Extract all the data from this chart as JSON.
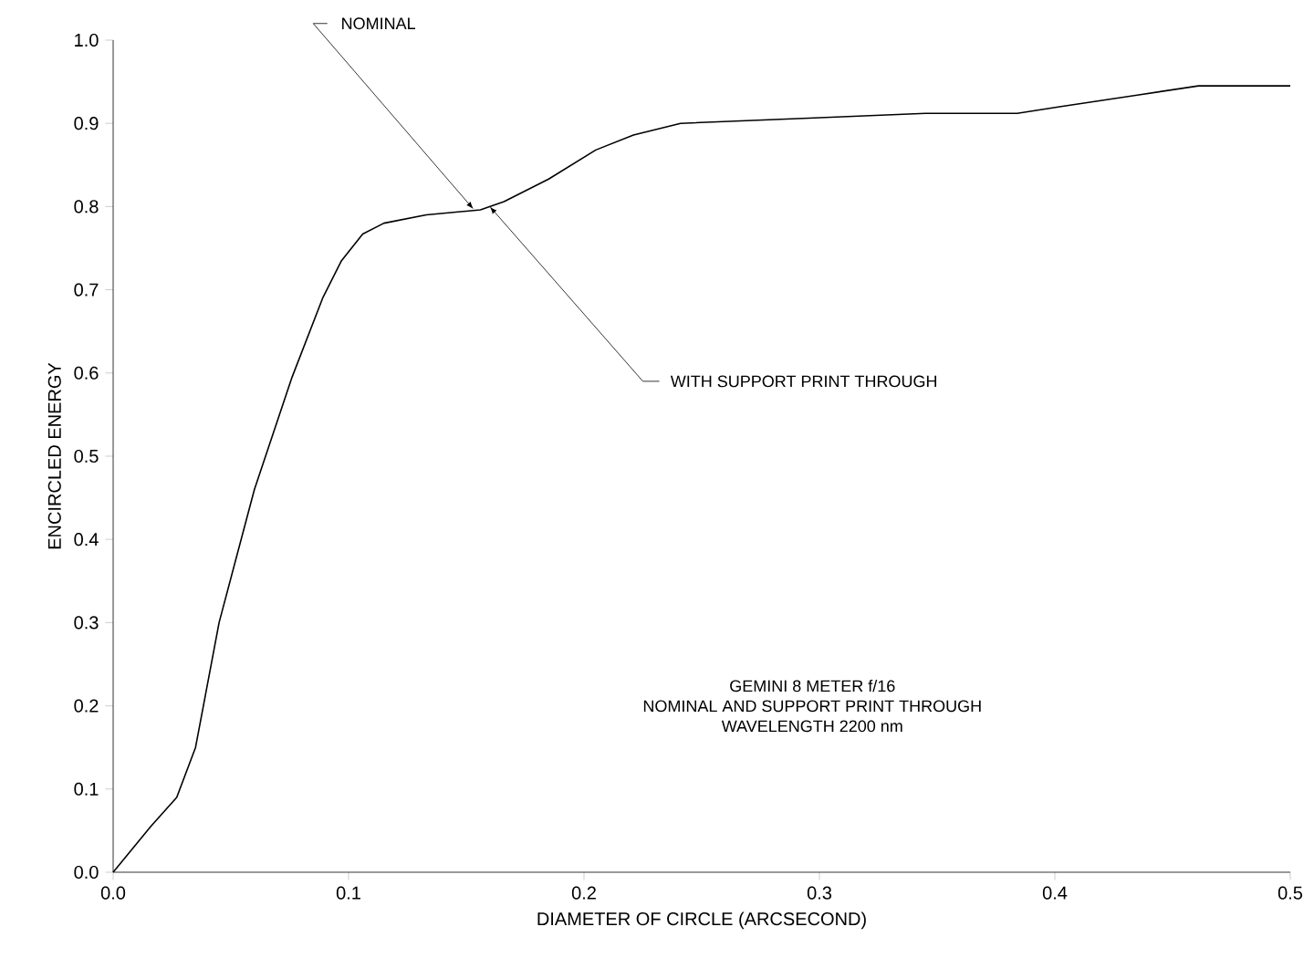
{
  "chart_data": {
    "type": "line",
    "xlabel": "DIAMETER OF CIRCLE (ARCSECOND)",
    "ylabel": "ENCIRCLED ENERGY",
    "x": [
      0,
      0.016,
      0.027,
      0.035,
      0.045,
      0.06,
      0.076,
      0.089,
      0.097,
      0.106,
      0.115,
      0.133,
      0.156,
      0.166,
      0.185,
      0.205,
      0.221,
      0.231,
      0.241,
      0.293,
      0.345,
      0.384,
      0.402,
      0.435,
      0.461,
      0.5
    ],
    "series": [
      {
        "color": "#000000",
        "values": [
          0,
          0.055,
          0.09,
          0.15,
          0.3,
          0.46,
          0.595,
          0.69,
          0.735,
          0.767,
          0.78,
          0.79,
          0.796,
          0.806,
          0.833,
          0.868,
          0.886,
          0.893,
          0.9,
          0.906,
          0.912,
          0.912,
          0.92,
          0.934,
          0.945,
          0.945
        ]
      }
    ],
    "xlim": [
      0,
      0.5
    ],
    "xticks": [
      {
        "value": 0,
        "label": "0.0"
      },
      0.1,
      0.2,
      0.3,
      0.4,
      0.5
    ],
    "ylim": [
      0,
      1.0
    ],
    "yticks": [
      {
        "value": 0,
        "label": "0.0"
      },
      0.1,
      0.2,
      0.3,
      0.4,
      0.5,
      0.6,
      0.7,
      0.8,
      0.9,
      {
        "value": 1.0,
        "label": "1.0"
      }
    ],
    "grid": false,
    "marker": "none",
    "line_style": "solid",
    "annotations": [
      {
        "text": "NOMINAL",
        "x": 0.153,
        "y": 0.797
      },
      {
        "text": "WITH SUPPORT PRINT THROUGH",
        "x": 0.16,
        "y": 0.8
      },
      "GEMINI 8 METER f/16",
      "NOMINAL AND SUPPORT PRINT THROUGH",
      "WAVELENGTH 2200 nm"
    ]
  }
}
